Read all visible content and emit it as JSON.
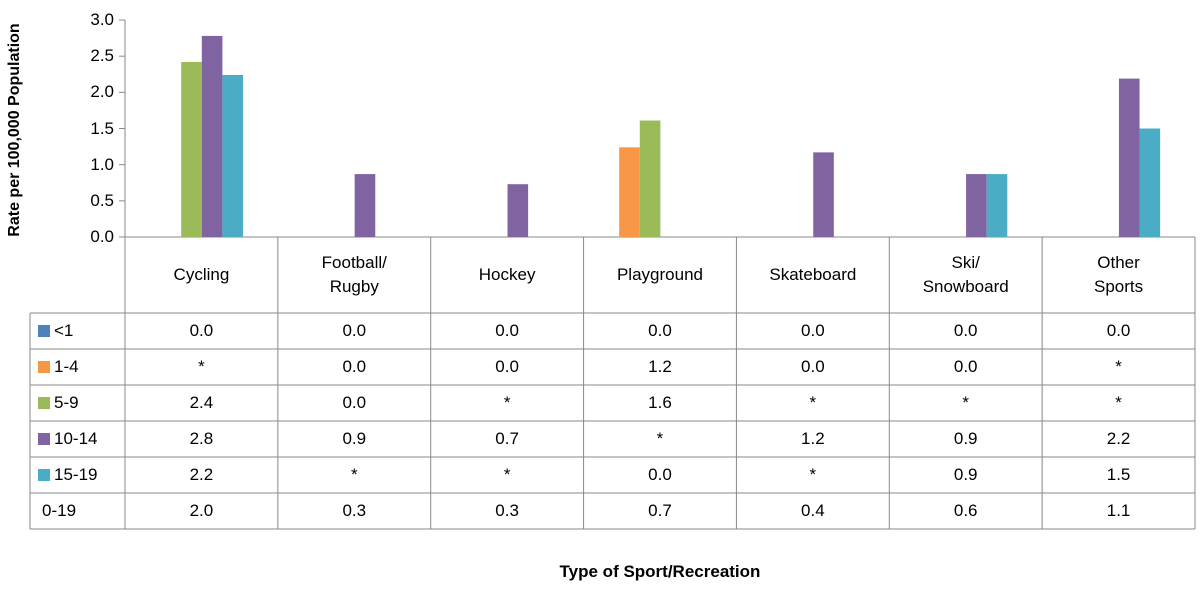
{
  "chart_data": {
    "type": "bar",
    "y_label": "Rate per 100,000 Population",
    "x_label": "Type of Sport/Recreation",
    "categories": [
      "Cycling",
      "Football/\nRugby",
      "Hockey",
      "Playground",
      "Skateboard",
      "Ski/\nSnowboard",
      "Other\nSports"
    ],
    "ylim": [
      0,
      3
    ],
    "yticks": [
      {
        "value": 0,
        "label": "0.0"
      },
      0.5,
      {
        "value": 1,
        "label": "1.0"
      },
      1.5,
      {
        "value": 2,
        "label": "2.0"
      },
      2.5,
      {
        "value": 3,
        "label": "3.0"
      }
    ],
    "series": [
      {
        "name": "<1",
        "color": "#4f81bd",
        "values": [
          0,
          0,
          0,
          0,
          0,
          0,
          0
        ],
        "value_labels": [
          "0.0",
          "0.0",
          "0.0",
          "0.0",
          "0.0",
          "0.0",
          "0.0"
        ]
      },
      {
        "name": "1-4",
        "color": "#f79646",
        "values": [
          null,
          0,
          0,
          1.24,
          0,
          0,
          null
        ],
        "value_labels": [
          "*",
          "0.0",
          "0.0",
          "1.2",
          "0.0",
          "0.0",
          "*"
        ]
      },
      {
        "name": "5-9",
        "color": "#9bbb59",
        "values": [
          2.42,
          0,
          null,
          1.61,
          null,
          null,
          null
        ],
        "value_labels": [
          "2.4",
          "0.0",
          "*",
          "1.6",
          "*",
          "*",
          "*"
        ]
      },
      {
        "name": "10-14",
        "color": "#8064a2",
        "values": [
          2.78,
          0.87,
          0.73,
          null,
          1.17,
          0.87,
          2.19
        ],
        "value_labels": [
          "2.8",
          "0.9",
          "0.7",
          "*",
          "1.2",
          "0.9",
          "2.2"
        ]
      },
      {
        "name": "15-19",
        "color": "#4bacc6",
        "values": [
          2.24,
          null,
          null,
          0,
          null,
          0.87,
          1.5
        ],
        "value_labels": [
          "2.2",
          "*",
          "*",
          "0.0",
          "*",
          "0.9",
          "1.5"
        ]
      },
      {
        "name": "0-19",
        "values": [
          2.0,
          0.3,
          0.3,
          0.7,
          0.4,
          0.6,
          1.1
        ],
        "value_labels": [
          "2.0",
          "0.3",
          "0.3",
          "0.7",
          "0.4",
          "0.6",
          "1.1"
        ]
      }
    ]
  }
}
